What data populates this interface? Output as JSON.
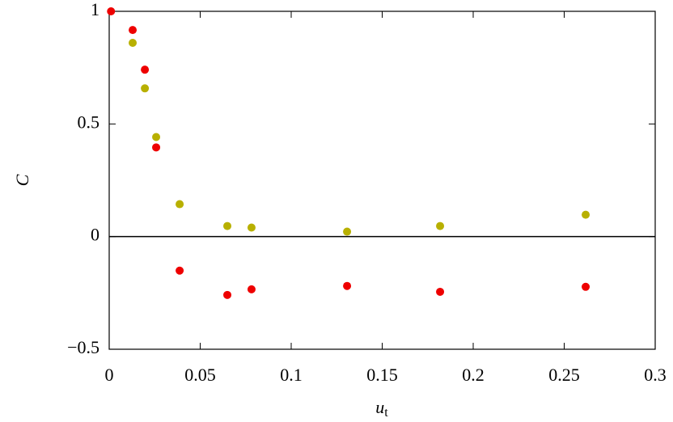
{
  "chart_data": {
    "type": "scatter",
    "xlabel": {
      "base": "u",
      "sub": "t"
    },
    "ylabel": "C",
    "xlim": [
      0,
      0.3
    ],
    "ylim": [
      -0.5,
      1
    ],
    "xticks": [
      0,
      0.05,
      0.1,
      0.15,
      0.2,
      0.25,
      0.3
    ],
    "yticks": [
      {
        "value": -0.5,
        "label": "−0.5"
      },
      0,
      0.5,
      1
    ],
    "zero_line": true,
    "series": [
      {
        "color": "#ee0000",
        "x": [
          0.001,
          0.0129,
          0.0196,
          0.0258,
          0.0387,
          0.0649,
          0.0782,
          0.1307,
          0.1818,
          0.2618
        ],
        "values": [
          1.0,
          0.917,
          0.741,
          0.396,
          -0.151,
          -0.259,
          -0.234,
          -0.219,
          -0.245,
          -0.223
        ]
      },
      {
        "color": "#b8b000",
        "x": [
          0.0129,
          0.0196,
          0.0258,
          0.0387,
          0.0649,
          0.0782,
          0.1307,
          0.1818,
          0.2618
        ],
        "values": [
          0.86,
          0.658,
          0.442,
          0.144,
          0.047,
          0.04,
          0.022,
          0.047,
          0.097
        ]
      }
    ]
  }
}
